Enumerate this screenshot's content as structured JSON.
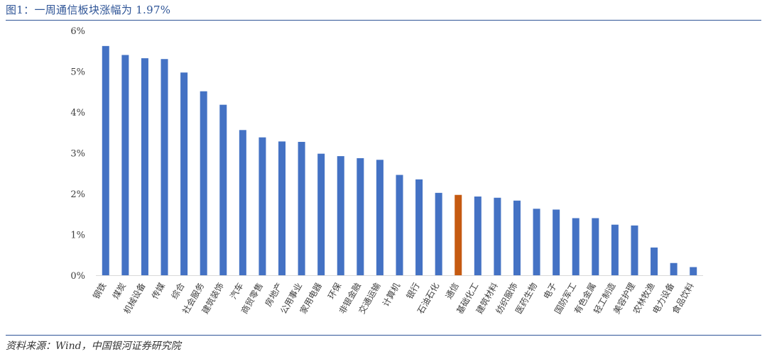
{
  "header": {
    "title": "图1：一周通信板块涨幅为 1.97%"
  },
  "footer": {
    "source": "资料来源：Wind，中国银河证券研究院"
  },
  "colors": {
    "bar": "#4472c4",
    "highlight": "#c55a11",
    "axis": "#d9d9d9",
    "rule": "#2f5597"
  },
  "chart_data": {
    "type": "bar",
    "title": "",
    "xlabel": "",
    "ylabel": "",
    "ylim": [
      0,
      6
    ],
    "yticks": [
      "0%",
      "1%",
      "2%",
      "3%",
      "4%",
      "5%",
      "6%"
    ],
    "grid": false,
    "legend": "none",
    "highlight_category": "通信",
    "categories": [
      "钢铁",
      "煤炭",
      "机械设备",
      "传媒",
      "综合",
      "社会服务",
      "建筑装饰",
      "汽车",
      "商贸零售",
      "房地产",
      "公用事业",
      "家用电器",
      "环保",
      "非银金融",
      "交通运输",
      "计算机",
      "银行",
      "石油石化",
      "通信",
      "基础化工",
      "建筑材料",
      "纺织服饰",
      "医药生物",
      "电子",
      "国防军工",
      "有色金属",
      "轻工制造",
      "美容护理",
      "农林牧渔",
      "电力设备",
      "食品饮料"
    ],
    "values": [
      5.62,
      5.4,
      5.32,
      5.3,
      4.97,
      4.51,
      4.18,
      3.56,
      3.38,
      3.28,
      3.27,
      2.98,
      2.92,
      2.87,
      2.83,
      2.46,
      2.35,
      2.02,
      1.97,
      1.93,
      1.9,
      1.83,
      1.63,
      1.61,
      1.4,
      1.4,
      1.24,
      1.22,
      0.68,
      0.3,
      0.2
    ]
  }
}
